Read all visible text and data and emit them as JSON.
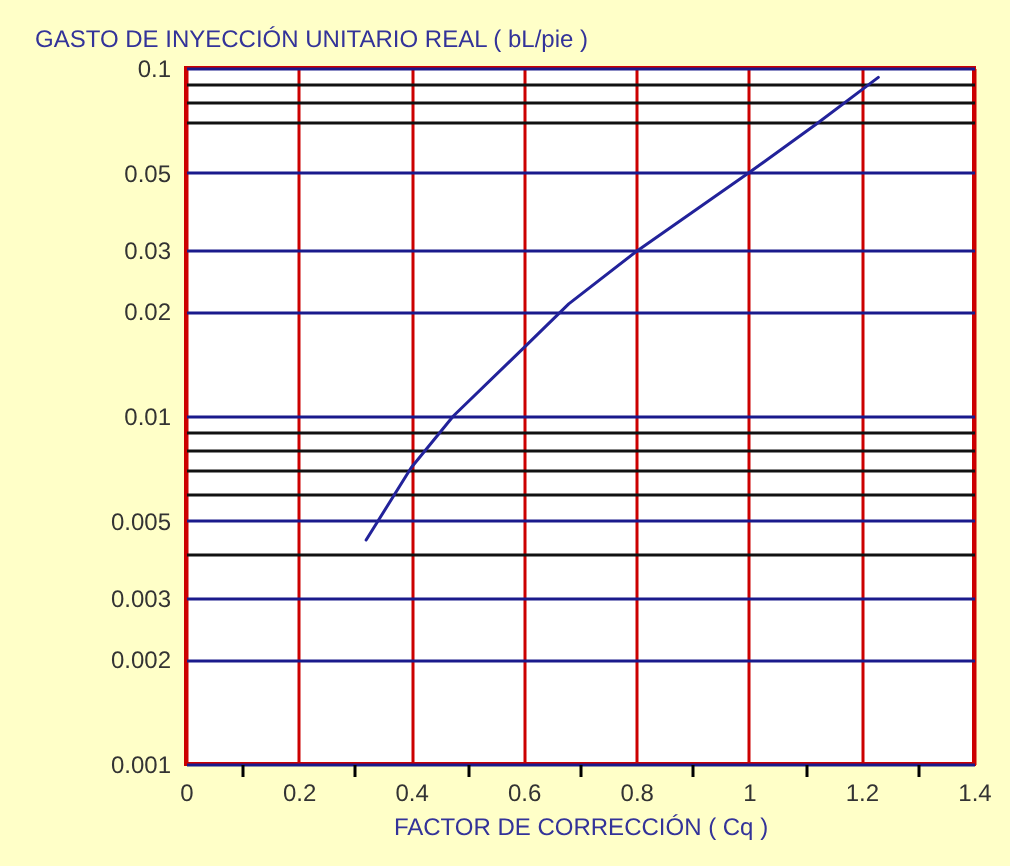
{
  "chart_data": {
    "type": "line",
    "xlabel": "FACTOR DE CORRECCIÓN ( Cq )",
    "ylabel": "GASTO DE INYECCIÓN UNITARIO REAL ( bL/pie )",
    "x": [
      0.32,
      0.4,
      0.475,
      0.6,
      0.68,
      0.8,
      1.0,
      1.12,
      1.23
    ],
    "series": [
      {
        "color": "#22229a",
        "values": [
          0.0044,
          0.0071,
          0.01,
          0.0157,
          0.021,
          0.0297,
          0.05,
          0.069,
          0.094
        ]
      }
    ],
    "xlim": [
      0,
      1.4
    ],
    "ylim": [
      0.001,
      0.1
    ],
    "xticks": [
      0,
      {
        "value": 0.1,
        "label": null
      },
      0.2,
      {
        "value": 0.3,
        "label": null
      },
      0.4,
      {
        "value": 0.5,
        "label": null
      },
      0.6,
      {
        "value": 0.7,
        "label": null
      },
      0.8,
      {
        "value": 0.9,
        "label": null
      },
      1,
      {
        "value": 1.1,
        "label": null
      },
      1.2,
      {
        "value": 1.3,
        "label": null
      },
      1.4
    ],
    "yticks": [
      0.001,
      0.002,
      0.003,
      {
        "value": 0.004,
        "label": null
      },
      0.005,
      {
        "value": 0.006,
        "label": null
      },
      {
        "value": 0.007,
        "label": null
      },
      {
        "value": 0.008,
        "label": null
      },
      {
        "value": 0.009,
        "label": null
      },
      0.01,
      0.02,
      0.03,
      0.05,
      {
        "value": 0.07,
        "label": null
      },
      {
        "value": 0.08,
        "label": null
      },
      {
        "value": 0.09,
        "label": null
      },
      0.1
    ],
    "log": true,
    "grid": true,
    "marker": "none",
    "line_style": "solid"
  }
}
